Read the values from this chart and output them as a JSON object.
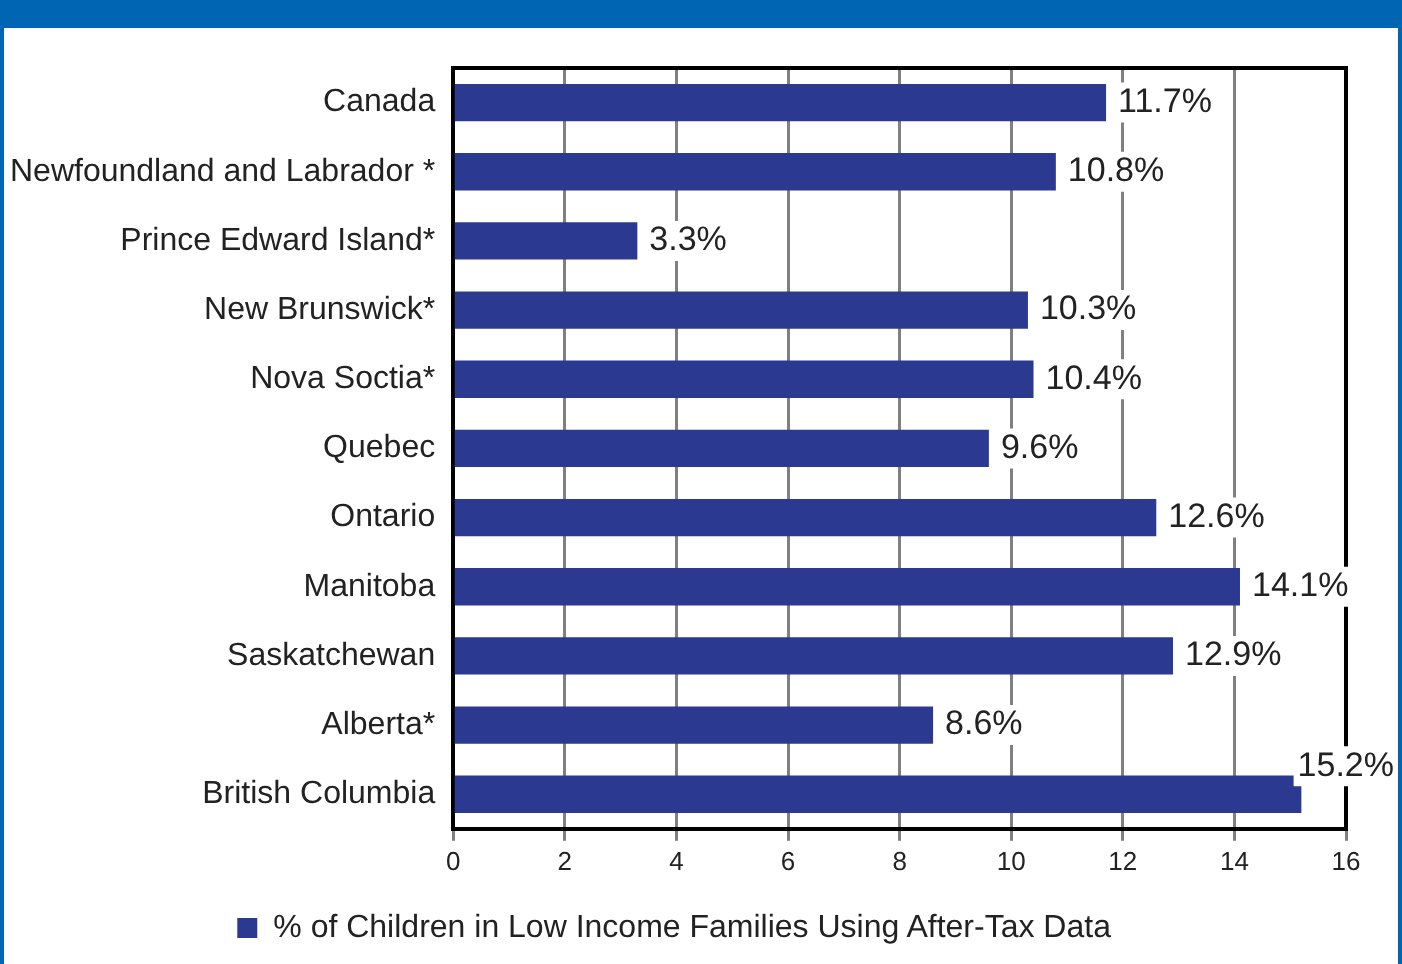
{
  "chart_data": {
    "type": "bar",
    "orientation": "horizontal",
    "categories": [
      "Canada",
      "Newfoundland and Labrador *",
      "Prince Edward Island*",
      "New Brunswick*",
      "Nova Soctia*",
      "Quebec",
      "Ontario",
      "Manitoba",
      "Saskatchewan",
      "Alberta*",
      "British Columbia"
    ],
    "series": [
      {
        "name": "% of Children in Low Income Families Using After-Tax Data",
        "color": "#2b3990",
        "values": [
          11.7,
          10.8,
          3.3,
          10.3,
          10.4,
          9.6,
          12.6,
          14.1,
          12.9,
          8.6,
          15.2
        ],
        "value_labels": [
          "11.7%",
          "10.8%",
          "3.3%",
          "10.3%",
          "10.4%",
          "9.6%",
          "12.6%",
          "14.1%",
          "12.9%",
          "8.6%",
          "15.2%"
        ]
      }
    ],
    "xlim": [
      0,
      16
    ],
    "xticks": [
      0,
      2,
      4,
      6,
      8,
      10,
      12,
      14,
      16
    ],
    "grid": "x",
    "legend": "bottom"
  }
}
